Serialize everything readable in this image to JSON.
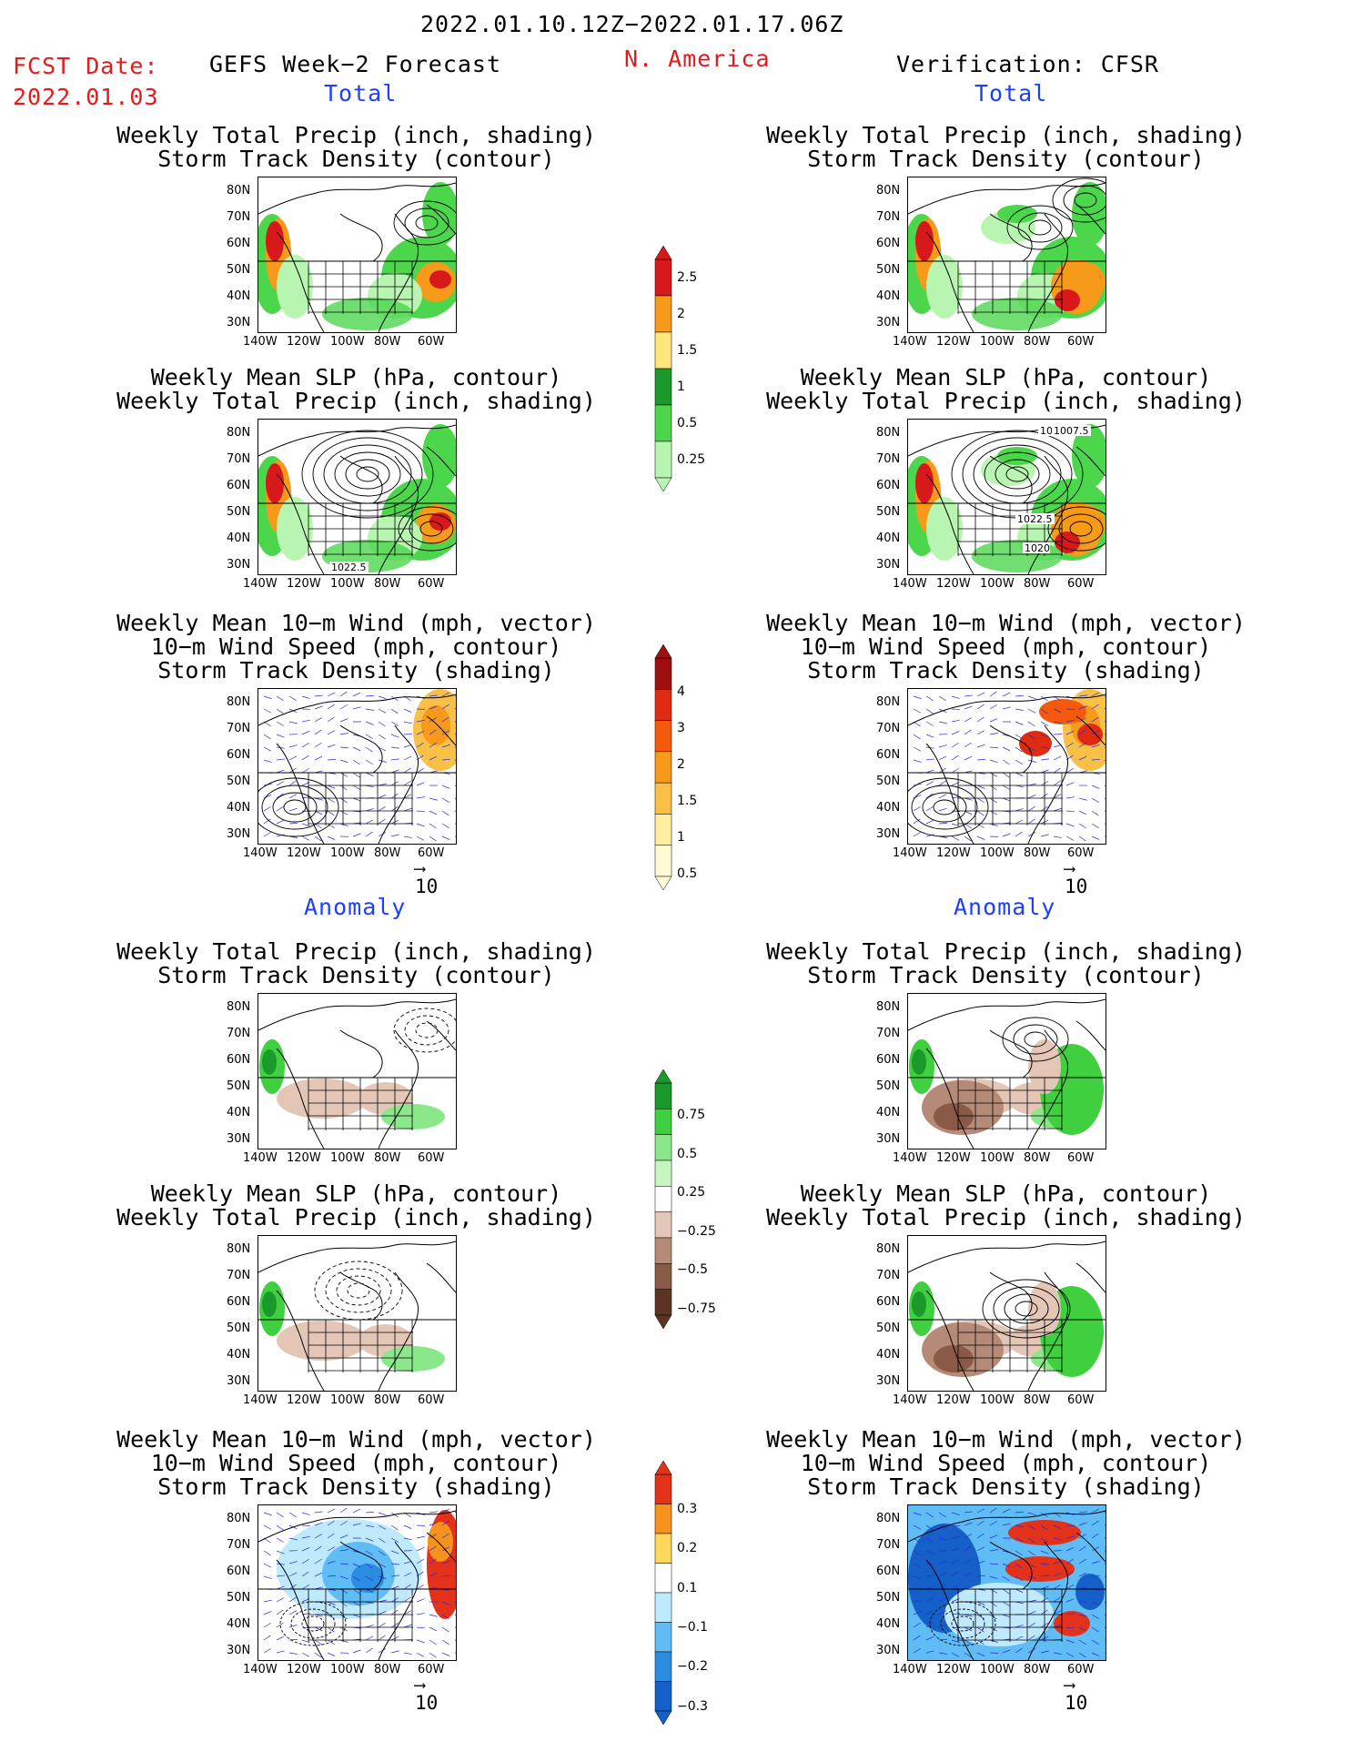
{
  "header": {
    "date_range": "2022.01.10.12Z−2022.01.17.06Z",
    "fcst_label": "FCST Date:",
    "fcst_date": "2022.01.03",
    "left_title": "GEFS Week−2 Forecast",
    "region": "N. America",
    "right_title": "Verification: CFSR"
  },
  "sections": {
    "total": "Total",
    "anomaly": "Anomaly"
  },
  "panel_titles": {
    "precip_storm": [
      "Weekly Total Precip (inch, shading)",
      "Storm Track Density (contour)"
    ],
    "slp_precip": [
      "Weekly Mean SLP (hPa, contour)",
      "Weekly Total Precip (inch, shading)"
    ],
    "wind_storm": [
      "Weekly Mean 10−m Wind (mph, vector)",
      "10−m Wind Speed (mph, contour)",
      "Storm Track Density (shading)"
    ]
  },
  "axes": {
    "lat_ticks": [
      "80N",
      "70N",
      "60N",
      "50N",
      "40N",
      "30N"
    ],
    "lon_ticks": [
      "140W",
      "120W",
      "100W",
      "80W",
      "60W"
    ]
  },
  "contour_labels": {
    "fc_slp": "1022.5",
    "ver_slp_a": "1007.5",
    "ver_slp_b": "1022.5",
    "ver_slp_c": "1020",
    "ver_slp_d": "10"
  },
  "vector_scale": "10",
  "colorbars": {
    "precip_total": {
      "labels": [
        "2.5",
        "2",
        "1.5",
        "1",
        "0.5",
        "0.25"
      ],
      "colors": [
        "#d7191c",
        "#f79a1a",
        "#fde67b",
        "#1a9a2a",
        "#4cd64c",
        "#b8f5b0"
      ]
    },
    "storm_total": {
      "labels": [
        "4",
        "3",
        "2",
        "1.5",
        "1",
        "0.5"
      ],
      "colors": [
        "#9e0f0f",
        "#e12a12",
        "#f55a0c",
        "#f7991a",
        "#f9c046",
        "#fdeea0",
        "#fffbd4"
      ]
    },
    "precip_anom": {
      "labels": [
        "0.75",
        "0.5",
        "0.25",
        "−0.25",
        "−0.5",
        "−0.75"
      ],
      "colors": [
        "#1a9a2a",
        "#3fcf3f",
        "#8ae88a",
        "#c7f5c0",
        "#ffffff",
        "#e3c6b6",
        "#b58b77",
        "#8a5a46",
        "#5c3424"
      ]
    },
    "storm_anom": {
      "labels": [
        "0.3",
        "0.2",
        "0.1",
        "−0.1",
        "−0.2",
        "−0.3"
      ],
      "colors": [
        "#e4321a",
        "#f7921c",
        "#fdd85c",
        "#ffffff",
        "#bfeafe",
        "#5fbcf5",
        "#2a8de0",
        "#1560c8"
      ]
    }
  }
}
